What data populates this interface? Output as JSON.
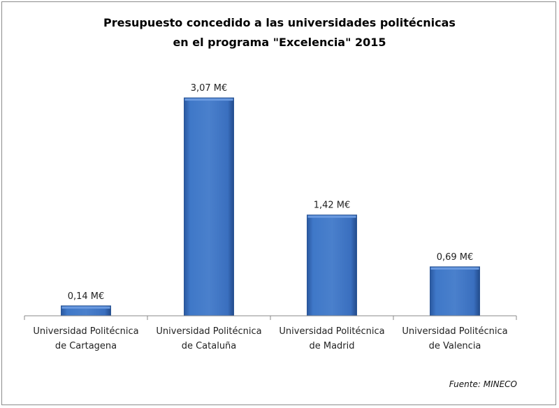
{
  "chart_data": {
    "type": "bar",
    "title": [
      "Presupuesto concedido a las universidades politécnicas",
      "en el programa \"Excelencia\" 2015"
    ],
    "categories": [
      [
        "Universidad Politécnica",
        "de Cartagena"
      ],
      [
        "Universidad Politécnica",
        "de Cataluña"
      ],
      [
        "Universidad Politécnica",
        "de Madrid"
      ],
      [
        "Universidad Politécnica",
        "de Valencia"
      ]
    ],
    "values": [
      0.14,
      3.07,
      1.42,
      0.69
    ],
    "data_labels": [
      "0,14 M€",
      "3,07 M€",
      "1,42 M€",
      "0,69 M€"
    ],
    "unit": "M€",
    "grid": false,
    "legend": "none",
    "bar_color": "#3a6fbf",
    "source": "Fuente: MINECO"
  }
}
